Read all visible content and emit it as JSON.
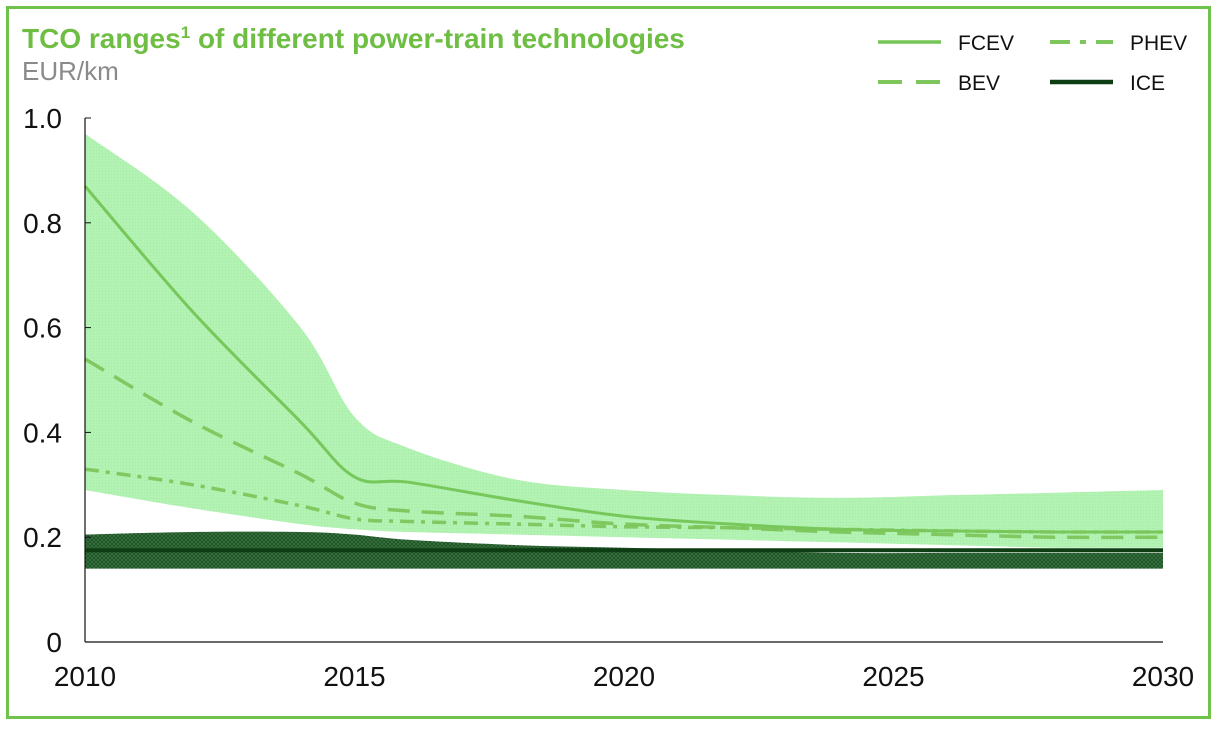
{
  "title": {
    "main": "TCO ranges",
    "superscript": "1",
    "rest": " of different power-train technologies",
    "subtitle": "EUR/km"
  },
  "colors": {
    "frame": "#6fc24a",
    "title": "#6fbe44",
    "fcev": "#74c556",
    "bev": "#7cc65c",
    "phev": "#7cc65c",
    "ice": "#0e3d14",
    "ev_band": "#a9f0a9",
    "ice_band": "#1f6b2a"
  },
  "chart_data": {
    "type": "line",
    "title": "TCO ranges of different power-train technologies",
    "ylabel": "EUR/km",
    "xlabel": "",
    "xlim": [
      2010,
      2030
    ],
    "ylim": [
      0,
      1.0
    ],
    "x_ticks": [
      "2010",
      "2015",
      "2020",
      "2025",
      "2030"
    ],
    "y_ticks": [
      "0",
      "0.2",
      "0.4",
      "0.6",
      "0.8",
      "1.0"
    ],
    "x": [
      2010,
      2012,
      2014,
      2015,
      2016,
      2018,
      2020,
      2022,
      2024,
      2026,
      2028,
      2030
    ],
    "series": [
      {
        "name": "FCEV",
        "style": "solid",
        "values": [
          0.87,
          0.63,
          0.42,
          0.315,
          0.305,
          0.27,
          0.24,
          0.225,
          0.215,
          0.212,
          0.21,
          0.21
        ]
      },
      {
        "name": "BEV",
        "style": "dashed",
        "values": [
          0.54,
          0.42,
          0.32,
          0.265,
          0.25,
          0.24,
          0.225,
          0.218,
          0.21,
          0.205,
          0.2,
          0.2
        ]
      },
      {
        "name": "PHEV",
        "style": "dash-dot",
        "values": [
          0.33,
          0.3,
          0.26,
          0.235,
          0.23,
          0.225,
          0.22,
          0.218,
          0.215,
          0.212,
          0.21,
          0.21
        ]
      },
      {
        "name": "ICE",
        "style": "solid-thick",
        "values": [
          0.175,
          0.175,
          0.175,
          0.175,
          0.175,
          0.175,
          0.175,
          0.175,
          0.175,
          0.175,
          0.175,
          0.175
        ]
      }
    ],
    "bands": [
      {
        "name": "EV range",
        "upper": [
          0.97,
          0.82,
          0.6,
          0.43,
          0.37,
          0.31,
          0.29,
          0.28,
          0.275,
          0.28,
          0.285,
          0.29
        ],
        "lower": [
          0.29,
          0.255,
          0.225,
          0.215,
          0.21,
          0.205,
          0.2,
          0.195,
          0.19,
          0.185,
          0.18,
          0.18
        ]
      },
      {
        "name": "ICE range",
        "upper": [
          0.205,
          0.21,
          0.21,
          0.205,
          0.195,
          0.185,
          0.18,
          0.175,
          0.17,
          0.17,
          0.17,
          0.17
        ],
        "lower": [
          0.14,
          0.14,
          0.14,
          0.14,
          0.14,
          0.14,
          0.14,
          0.14,
          0.14,
          0.14,
          0.14,
          0.14
        ]
      }
    ],
    "legend": [
      {
        "label": "FCEV",
        "style": "solid"
      },
      {
        "label": "PHEV",
        "style": "dash-dot"
      },
      {
        "label": "BEV",
        "style": "dashed"
      },
      {
        "label": "ICE",
        "style": "solid-thick"
      }
    ],
    "legend_position": "top-right"
  }
}
